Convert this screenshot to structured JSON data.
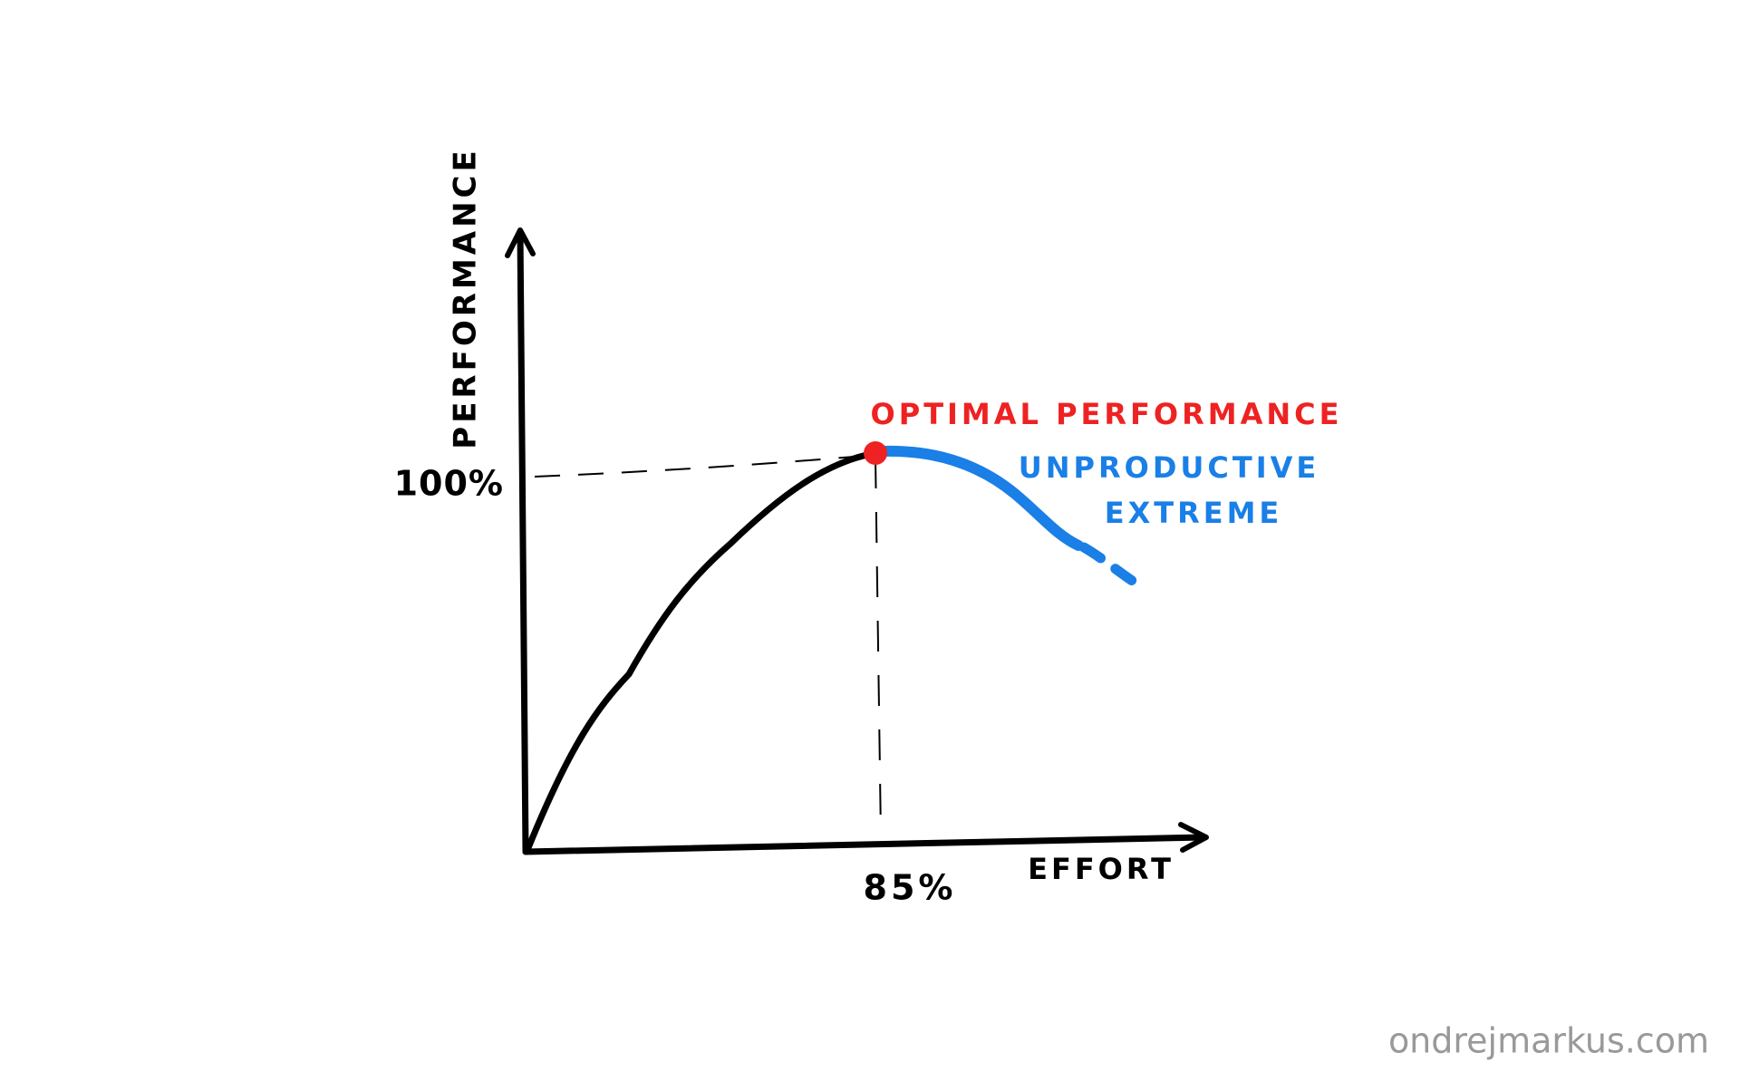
{
  "diagram": {
    "y_axis_label": "PERFORMANCE",
    "x_axis_label": "EFFORT",
    "y_marker_label": "100%",
    "x_marker_label": "85%",
    "peak_label": "OPTIMAL PERFORMANCE",
    "decline_label_line1": "UNPRODUCTIVE",
    "decline_label_line2": "EXTREME"
  },
  "footer": {
    "watermark": "ondrejmarkus.com"
  }
}
